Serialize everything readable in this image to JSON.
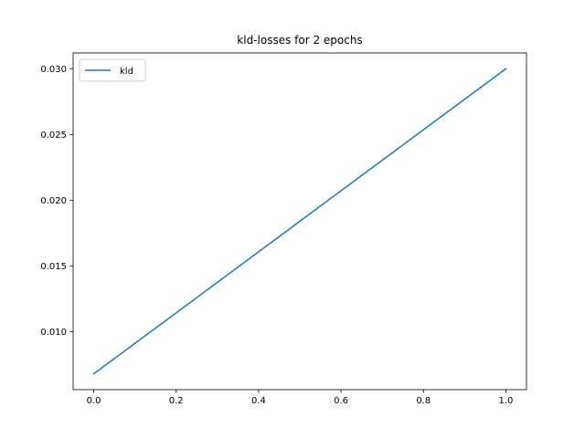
{
  "chart_data": {
    "type": "line",
    "title": "kld-losses for 2 epochs",
    "xlabel": "",
    "ylabel": "",
    "xlim": [
      -0.05,
      1.05
    ],
    "ylim": [
      0.0056,
      0.0312
    ],
    "xticks": [
      0.0,
      0.2,
      0.4,
      0.6,
      0.8,
      1.0
    ],
    "xtick_labels": [
      "0.0",
      "0.2",
      "0.4",
      "0.6",
      "0.8",
      "1.0"
    ],
    "yticks": [
      0.01,
      0.015,
      0.02,
      0.025,
      0.03
    ],
    "ytick_labels": [
      "0.010",
      "0.015",
      "0.020",
      "0.025",
      "0.030"
    ],
    "grid": false,
    "legend_position": "top-left",
    "series": [
      {
        "name": "kld",
        "color": "#1f77b4",
        "x": [
          0,
          1
        ],
        "y": [
          0.0068,
          0.03
        ]
      }
    ]
  }
}
